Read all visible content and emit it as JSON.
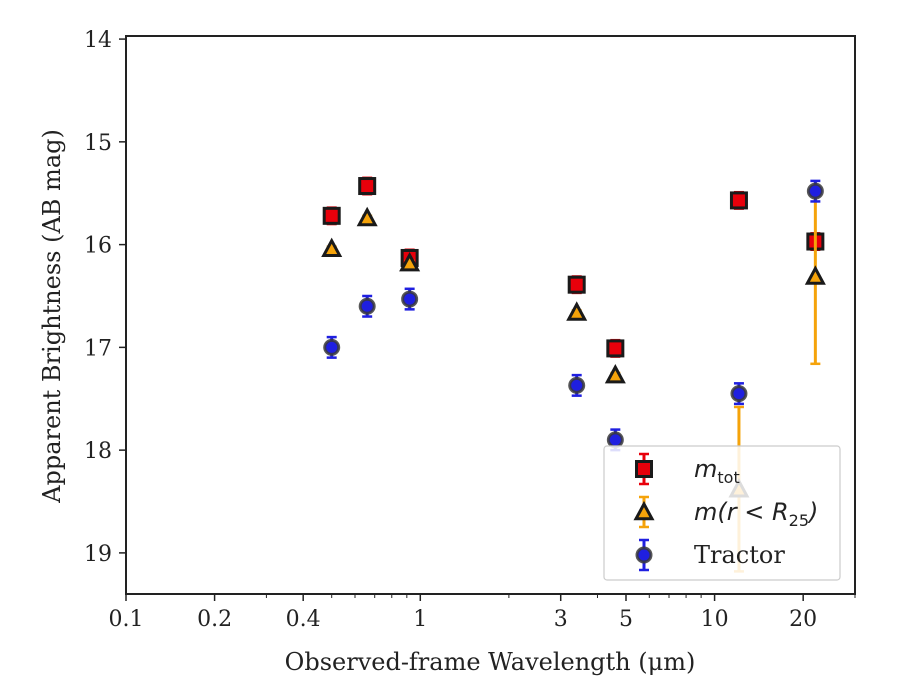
{
  "chart_data": {
    "type": "scatter",
    "title": "",
    "xlabel": "Observed-frame Wavelength (μm)",
    "ylabel": "Apparent Brightness (AB mag)",
    "xscale": "log",
    "xlim": [
      0.1,
      30
    ],
    "ylim": [
      19.4,
      13.97
    ],
    "y_inverted": true,
    "x_major_ticks": [
      0.1,
      0.2,
      0.4,
      1,
      3,
      5,
      10,
      20
    ],
    "x_tick_labels": [
      "0.1",
      "0.2",
      "0.4",
      "1",
      "3",
      "5",
      "10",
      "20"
    ],
    "x_minor_ticks": [
      0.3,
      0.5,
      0.6,
      0.7,
      0.8,
      0.9,
      2,
      4,
      6,
      7,
      8,
      9,
      30
    ],
    "y_ticks": [
      14,
      15,
      16,
      17,
      18,
      19
    ],
    "y_tick_labels": [
      "14",
      "15",
      "16",
      "17",
      "18",
      "19"
    ],
    "legend_position": "lower-right",
    "series": [
      {
        "name": "m_tot",
        "marker": "square",
        "face_color": "#e8000b",
        "edge_color": "#1a1a1a",
        "error_color": "#e8000b",
        "points": [
          {
            "x": 0.5,
            "y": 15.72,
            "err": 0.08
          },
          {
            "x": 0.66,
            "y": 15.43,
            "err": 0.08
          },
          {
            "x": 0.92,
            "y": 16.13,
            "err": 0.08
          },
          {
            "x": 3.4,
            "y": 16.39,
            "err": 0.08
          },
          {
            "x": 4.6,
            "y": 17.01,
            "err": 0.08
          },
          {
            "x": 12.1,
            "y": 15.57,
            "err": 0.08
          },
          {
            "x": 22.0,
            "y": 15.97,
            "err": 0.08
          }
        ]
      },
      {
        "name": "m(r < R25)",
        "marker": "triangle",
        "face_color": "#f5a30a",
        "edge_color": "#1a1a1a",
        "error_color": "#f5a30a",
        "points": [
          {
            "x": 0.5,
            "y": 16.04,
            "err": 0.02
          },
          {
            "x": 0.66,
            "y": 15.74,
            "err": 0.02
          },
          {
            "x": 0.92,
            "y": 16.18,
            "err": 0.02
          },
          {
            "x": 3.4,
            "y": 16.66,
            "err": 0.02
          },
          {
            "x": 4.6,
            "y": 17.27,
            "err": 0.02
          },
          {
            "x": 12.1,
            "y": 18.38,
            "err": 0.8
          },
          {
            "x": 22.0,
            "y": 16.31,
            "err": 0.85
          }
        ]
      },
      {
        "name": "Tractor",
        "marker": "circle",
        "face_color": "#1f1fe0",
        "edge_color": "#3a3a3a",
        "error_color": "#1f1fe0",
        "points": [
          {
            "x": 0.5,
            "y": 17.0,
            "err": 0.1
          },
          {
            "x": 0.66,
            "y": 16.6,
            "err": 0.1
          },
          {
            "x": 0.92,
            "y": 16.53,
            "err": 0.1
          },
          {
            "x": 3.4,
            "y": 17.37,
            "err": 0.1
          },
          {
            "x": 4.6,
            "y": 17.9,
            "err": 0.1
          },
          {
            "x": 12.1,
            "y": 17.45,
            "err": 0.1
          },
          {
            "x": 22.0,
            "y": 15.48,
            "err": 0.1
          }
        ]
      }
    ],
    "legend": {
      "entries": [
        {
          "series": 0,
          "math_base": "m",
          "math_sub": "tot",
          "text": ""
        },
        {
          "series": 1,
          "math_base": "m(r < R",
          "math_sub": "25",
          "math_close": ")",
          "text": ""
        },
        {
          "series": 2,
          "math_base": "",
          "math_sub": "",
          "text": "Tractor"
        }
      ]
    }
  }
}
